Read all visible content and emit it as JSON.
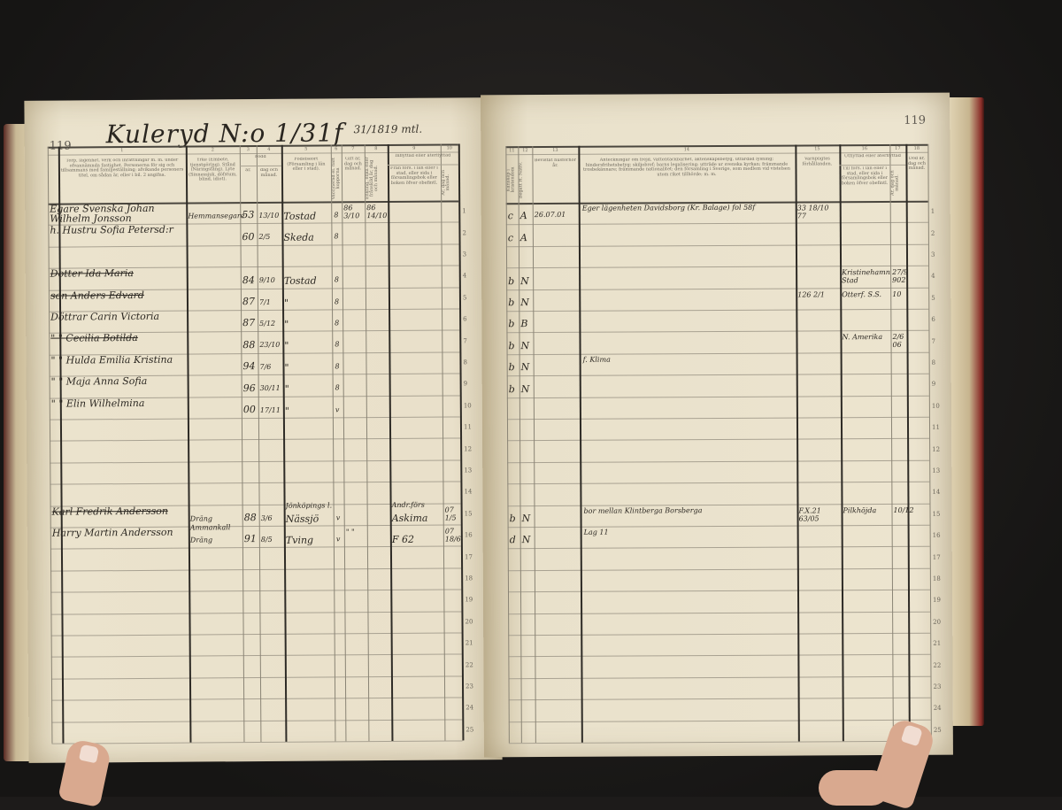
{
  "left_page": {
    "page_number": "119",
    "title": "Kuleryd N:o 1/31f",
    "title_note": "31/1819 mtl.",
    "column_numbers": [
      "1",
      "2",
      "3",
      "4",
      "5",
      "6",
      "7",
      "8",
      "9",
      "10"
    ],
    "headers": {
      "name": "Torp, lägenhet, verk och inrättningar m. m. under ofvannämnda fastighet. Personerna för sig och tillsammans med familjeställning; afvikande personers titel, om sådan är, eller i bil. 2 angifna.",
      "occupation": "Yrke (Embete, tjenstgöring). Stånd (Näringsfång). Lyte (Sinnessjuk, döfstum, blind, idiot).",
      "born_group": "Född",
      "born_year": "år.",
      "born_date": "dag och månad.",
      "birthplace": "Födelseort (Församling i län eller i stad).",
      "mark": "Vaccinerad el. haft kopporna",
      "married": "Gift år, dag och månad.",
      "widowed": "Enkling, enka eller frånskild år, dag och månad.",
      "moved_in_group": "Inflyttad eller återflyttad",
      "moved_in_from": "Från förs. i län eller i stad, eller sida i församlingsbok eller boken öfver obefintl.",
      "moved_in_date": "År, dag och månad."
    },
    "rows": [
      {
        "row": 1,
        "name": "Egare Svenska Johan Wilhelm Jonsson",
        "occupation": "Hemmansegare",
        "born_year": "53",
        "born_date": "13/10",
        "birthplace": "Tostad",
        "mark": "8",
        "married": "86 3/10",
        "widowed": "86 14/10",
        "struck": false
      },
      {
        "row": 2,
        "name": "h. Hustru Sofia Petersd:r",
        "born_year": "60",
        "born_date": "2/5",
        "birthplace": "Skeda",
        "mark": "8",
        "struck": false
      },
      {
        "row": 4,
        "name": "Dotter Ida Maria",
        "born_year": "84",
        "born_date": "9/10",
        "birthplace": "Tostad",
        "mark": "8",
        "struck": true
      },
      {
        "row": 5,
        "name": "son Anders Edvard",
        "born_year": "87",
        "born_date": "7/1",
        "birthplace": "\"",
        "mark": "8",
        "struck": true
      },
      {
        "row": 6,
        "name": "Döttrar Carin Victoria",
        "born_year": "87",
        "born_date": "5/12",
        "birthplace": "\"",
        "mark": "8",
        "struck": false
      },
      {
        "row": 7,
        "name": "\" \" Cecilia Botilda",
        "born_year": "88",
        "born_date": "23/10",
        "birthplace": "\"",
        "mark": "8",
        "struck": true
      },
      {
        "row": 8,
        "name": "\" \" Hulda Emilia Kristina",
        "born_year": "94",
        "born_date": "7/6",
        "birthplace": "\"",
        "mark": "8",
        "struck": false
      },
      {
        "row": 9,
        "name": "\" \" Maja Anna Sofia",
        "born_year": "96",
        "born_date": "30/11",
        "birthplace": "\"",
        "mark": "8",
        "struck": false
      },
      {
        "row": 10,
        "name": "\" \" Elin Wilhelmina",
        "born_year": "00",
        "born_date": "17/11",
        "birthplace": "\"",
        "mark": "v",
        "struck": false
      },
      {
        "row": 15,
        "name": "Karl Fredrik Andersson",
        "occupation": "Dräng",
        "born_year": "88",
        "born_date": "3/6",
        "birthplace_note": "Jönköpings l.",
        "birthplace": "Nässjö",
        "mark": "v",
        "moved_in_note": "Andr.förs",
        "moved_in_from": "Askima",
        "moved_in_date": "07 1/5",
        "struck": true
      },
      {
        "row": 16,
        "name": "Harry Martin Andersson",
        "occupation_note": "Ammankall",
        "occupation": "Dräng",
        "born_year": "91",
        "born_date": "8/5",
        "birthplace": "Tving",
        "mark": "v",
        "married": "\" \"",
        "moved_in_from": "F 62",
        "moved_in_date": "07 18/6",
        "struck": false
      }
    ]
  },
  "right_page": {
    "page_number": "119",
    "column_numbers": [
      "11",
      "12",
      "13",
      "14",
      "15",
      "16",
      "17",
      "18"
    ],
    "headers": {
      "knowledge": "Kunskap i kristendom",
      "communion": "Begått H. Nattv.",
      "examination": "Bevistat husförhör år.",
      "remarks": "Anteckningar om frejd, vattentäckbarhet, äktenskapsbetyg, utfärdad lysning; hindersfrihetsbetyg; skiljobref; barns legalisering; utträde ur svenska kyrkan; främmande trosbekännare; främmande nationalitet; den församling i Sverige, som medlem vid vistelsen utom riket tillhörde; m. m.",
      "military": "Värnpligtes förhållanden.",
      "moved_out_group": "Utflyttad eller återflyttad",
      "moved_out_to": "Till förs. i län eller i stad, eller sida i församlingsbok eller boken öfver obefintl.",
      "moved_out_date": "År, dag och månad.",
      "died": "Död år, dag och månad."
    },
    "rows": [
      {
        "row": 1,
        "knowledge": "c",
        "communion": "A",
        "examination": "26.07.01",
        "remarks": "Eger lägenheten Davidsborg (Kr. Balage) fol 58f",
        "military": "33 18/10 77"
      },
      {
        "row": 2,
        "knowledge": "c",
        "communion": "A"
      },
      {
        "row": 4,
        "knowledge": "b",
        "communion": "N",
        "moved_out_to": "Kristinehamn Stad",
        "moved_out_date": "27/9 902"
      },
      {
        "row": 5,
        "knowledge": "b",
        "communion": "N",
        "military": "126 2/1",
        "moved_out_to": "Otterf. S.S.",
        "moved_out_date": "10"
      },
      {
        "row": 6,
        "knowledge": "b",
        "communion": "B"
      },
      {
        "row": 7,
        "knowledge": "b",
        "communion": "N",
        "moved_out_to": "N. Amerika",
        "moved_out_date": "2/6 06"
      },
      {
        "row": 8,
        "knowledge": "b",
        "communion": "N",
        "remarks": "f. Klima"
      },
      {
        "row": 9,
        "knowledge": "b",
        "communion": "N"
      },
      {
        "row": 15,
        "knowledge": "b",
        "communion": "N",
        "remarks": "bor mellan Klintberga Borsberga",
        "military": "F.X.21 63/05",
        "moved_out_to": "Pilkhöjda",
        "moved_out_date": "10/12"
      },
      {
        "row": 16,
        "knowledge": "d",
        "communion": "N",
        "remarks": "Lag 11"
      }
    ]
  },
  "row_count": 25
}
